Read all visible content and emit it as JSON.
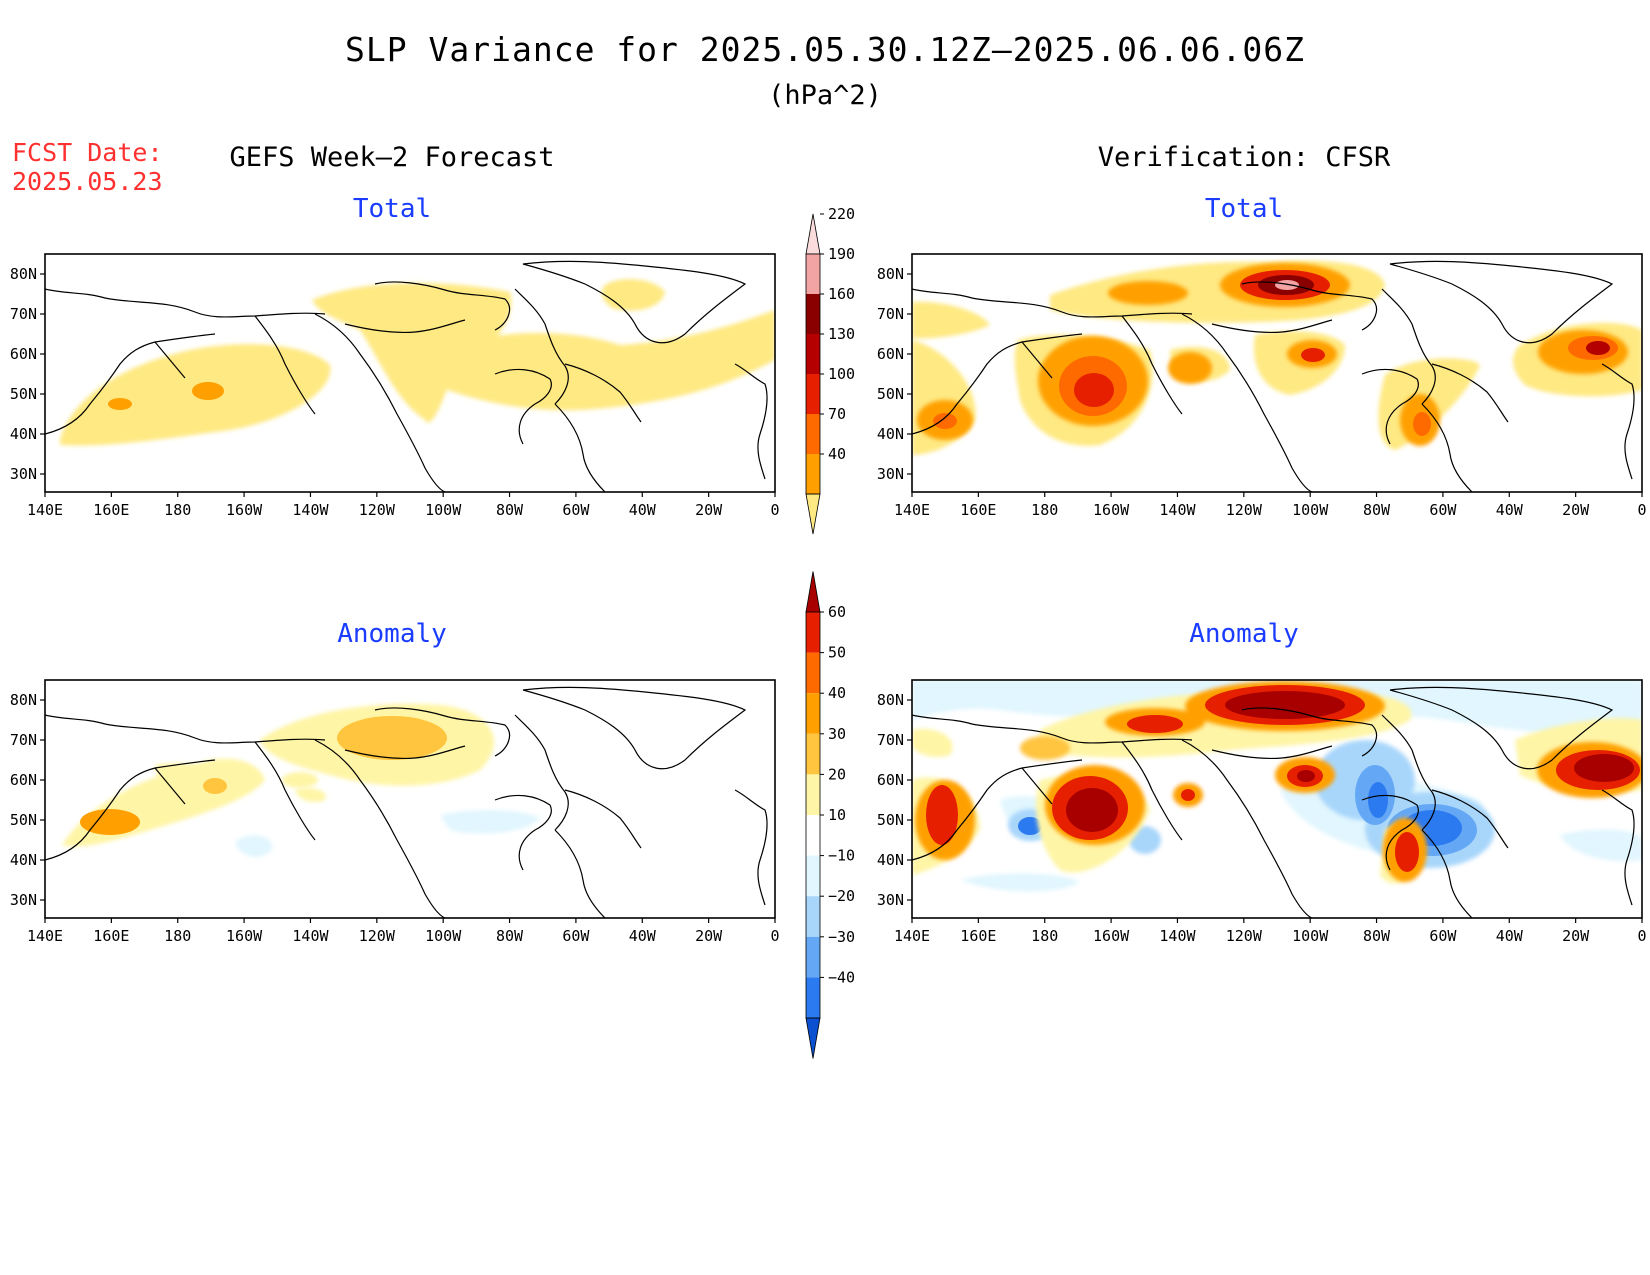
{
  "title": "SLP Variance for 2025.05.30.12Z–2025.06.06.06Z",
  "units": "(hPa^2)",
  "fcst": {
    "label": "FCST Date:",
    "date": "2025.05.23"
  },
  "columns": {
    "left": "GEFS Week–2 Forecast",
    "right": "Verification: CFSR"
  },
  "panels": {
    "fc_total": "Total",
    "vf_total": "Total",
    "fc_anom": "Anomaly",
    "vf_anom": "Anomaly"
  },
  "axes": {
    "lat_labels": [
      "80N",
      "70N",
      "60N",
      "50N",
      "40N",
      "30N"
    ],
    "lon_labels": [
      "140E",
      "160E",
      "180",
      "160W",
      "140W",
      "120W",
      "100W",
      "80W",
      "60W",
      "40W",
      "20W",
      "0"
    ]
  },
  "colorbars": {
    "total": {
      "ticks": [
        "40",
        "70",
        "100",
        "130",
        "160",
        "190",
        "220"
      ],
      "colors": [
        "#ffe982",
        "#ffa000",
        "#ff6a00",
        "#e61f00",
        "#b40000",
        "#8a0000",
        "#f2a3a3",
        "#fbdcdc"
      ]
    },
    "anomaly": {
      "ticks": [
        "−40",
        "−30",
        "−20",
        "−10",
        "10",
        "20",
        "30",
        "40",
        "50",
        "60"
      ],
      "colors": [
        "#0a50d0",
        "#2b7af0",
        "#64a8f5",
        "#a8d6fb",
        "#e1f6fe",
        "#ffffff",
        "#fff5a6",
        "#ffc53f",
        "#ffa000",
        "#ff6a00",
        "#e61f00",
        "#a80000"
      ]
    }
  }
}
